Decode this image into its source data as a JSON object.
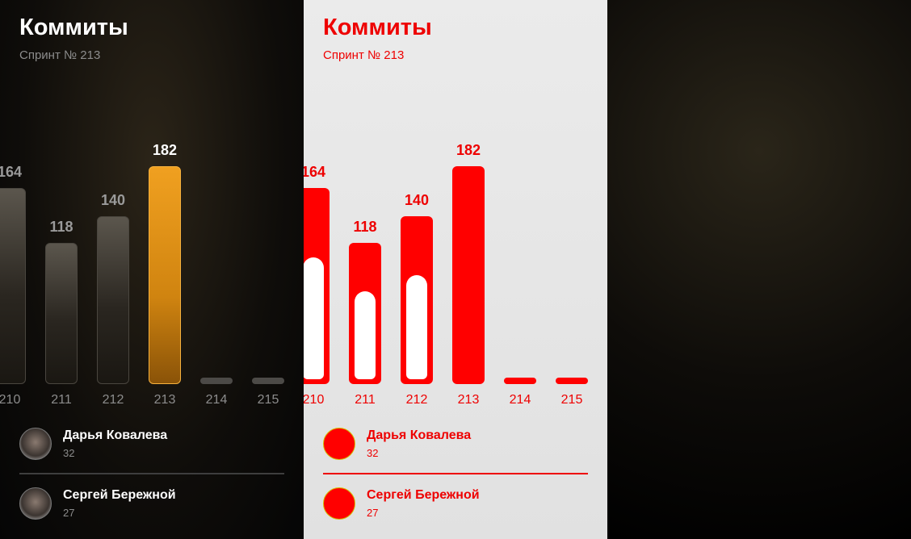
{
  "title": "Коммиты",
  "subtitle": "Спринт № 213",
  "chart_data": {
    "type": "bar",
    "categories": [
      "210",
      "211",
      "212",
      "213",
      "214",
      "215"
    ],
    "values": [
      164,
      118,
      140,
      182,
      0,
      0
    ],
    "value_labels": [
      "164",
      "118",
      "140",
      "182",
      "",
      ""
    ],
    "highlighted_category": "213"
  },
  "people": [
    {
      "name": "Дарья Ковалева",
      "count": "32"
    },
    {
      "name": "Сергей Бережной",
      "count": "27"
    }
  ],
  "colors": {
    "dark_bg": "#0f0d0a",
    "accent": "#f0a020",
    "light_bg": "#e6e6e6",
    "light_accent": "#ff0000"
  }
}
